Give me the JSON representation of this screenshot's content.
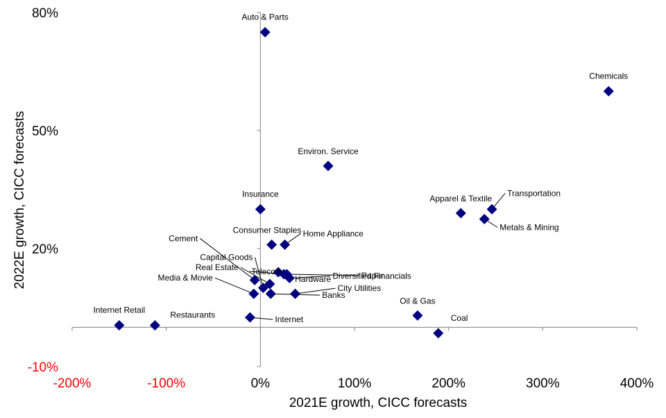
{
  "chart_data": {
    "type": "scatter",
    "xlabel": "2021E growth, CICC forecasts",
    "ylabel": "2022E growth, CICC forecasts",
    "xlim": [
      -200,
      400
    ],
    "ylim": [
      -10,
      80
    ],
    "x_ticks": [
      -200,
      -100,
      0,
      100,
      200,
      300,
      400
    ],
    "y_ticks": [
      -10,
      20,
      50,
      80
    ],
    "x_tick_labels": [
      "-200%",
      "-100%",
      "0%",
      "100%",
      "200%",
      "300%",
      "400%"
    ],
    "y_tick_labels": [
      "-10%",
      "20%",
      "50%",
      "80%"
    ],
    "negative_tick_color": "#ff0000",
    "positive_tick_color": "#000000",
    "marker_color": "#000080",
    "marker": "diamond",
    "grid": false,
    "points": [
      {
        "label": "Auto & Parts",
        "x": 5,
        "y": 75
      },
      {
        "label": "Chemicals",
        "x": 370,
        "y": 60
      },
      {
        "label": "Environ. Service",
        "x": 72,
        "y": 41
      },
      {
        "label": "Insurance",
        "x": 0,
        "y": 30
      },
      {
        "label": "Apparel & Textile",
        "x": 213,
        "y": 29
      },
      {
        "label": "Transportation",
        "x": 246,
        "y": 30
      },
      {
        "label": "Metals & Mining",
        "x": 238,
        "y": 27.5
      },
      {
        "label": "Consumer Staples",
        "x": 12,
        "y": 21
      },
      {
        "label": "Home Appliance",
        "x": 26,
        "y": 21
      },
      {
        "label": "Hardware",
        "x": 19,
        "y": 14
      },
      {
        "label": "Paper",
        "x": 25,
        "y": 13.5
      },
      {
        "label": "Diversified Financials",
        "x": 31,
        "y": 12.5
      },
      {
        "label": "Telecom",
        "x": 28,
        "y": 13.5
      },
      {
        "label": "Cement",
        "x": -6,
        "y": 12
      },
      {
        "label": "Capital Goods",
        "x": 3,
        "y": 10
      },
      {
        "label": "Real Estate",
        "x": 10,
        "y": 11
      },
      {
        "label": "Media & Movie",
        "x": -7,
        "y": 8.5
      },
      {
        "label": "Banks",
        "x": 11,
        "y": 8.5
      },
      {
        "label": "City Utilities",
        "x": 37,
        "y": 8.5
      },
      {
        "label": "Internet",
        "x": -11,
        "y": 2.5
      },
      {
        "label": "Internet Retail",
        "x": -150,
        "y": 0.5
      },
      {
        "label": "Restaurants",
        "x": -112,
        "y": 0.5
      },
      {
        "label": "Oil & Gas",
        "x": 167,
        "y": 3
      },
      {
        "label": "Coal",
        "x": 189,
        "y": -1.5
      }
    ]
  }
}
